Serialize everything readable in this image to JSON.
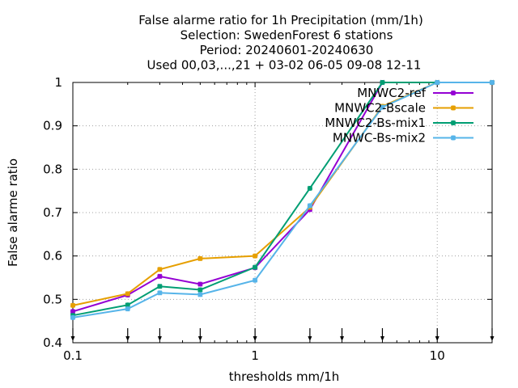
{
  "chart_data": {
    "type": "line",
    "title_lines": [
      "False alarme ratio  for 1h Precipitation (mm/1h)",
      "Selection: SwedenForest      6 stations",
      "Period: 20240601-20240630",
      "Used 00,03,...,21 + 03-02 06-05 09-08 12-11"
    ],
    "xlabel": "thresholds mm/1h",
    "ylabel": "False alarme ratio",
    "xscale": "log",
    "xlim": [
      0.1,
      20
    ],
    "ylim": [
      0.4,
      1.0
    ],
    "xticks": [
      0.1,
      1,
      10
    ],
    "xtick_labels": [
      "0.1",
      "1",
      "10"
    ],
    "yticks": [
      0.4,
      0.5,
      0.6,
      0.7,
      0.8,
      0.9,
      1.0
    ],
    "ytick_labels": [
      "0.4",
      "0.5",
      "0.6",
      "0.7",
      "0.8",
      "0.9",
      "1"
    ],
    "threshold_markers": [
      0.1,
      0.2,
      0.3,
      0.5,
      1,
      2,
      3,
      5,
      10,
      20
    ],
    "grid": true,
    "legend_position": "top-right",
    "x": [
      0.1,
      0.2,
      0.3,
      0.5,
      1,
      2,
      5,
      10,
      20
    ],
    "series": [
      {
        "name": "MNWC2-ref",
        "color": "#9400d3",
        "values": [
          0.472,
          0.51,
          0.553,
          0.535,
          0.573,
          0.707,
          1.0,
          1.0,
          1.0
        ]
      },
      {
        "name": "MNWC2-Bscale",
        "color": "#e69f00",
        "values": [
          0.486,
          0.513,
          0.569,
          0.594,
          0.6,
          0.712,
          0.945,
          1.0,
          1.0
        ]
      },
      {
        "name": "MNWC2-Bs-mix1",
        "color": "#009e73",
        "values": [
          0.463,
          0.487,
          0.53,
          0.522,
          0.574,
          0.756,
          1.0,
          1.0,
          1.0
        ]
      },
      {
        "name": "MNWC-Bs-mix2",
        "color": "#56b4e9",
        "values": [
          0.458,
          0.478,
          0.515,
          0.511,
          0.544,
          0.716,
          0.943,
          1.0,
          1.0
        ]
      }
    ]
  }
}
